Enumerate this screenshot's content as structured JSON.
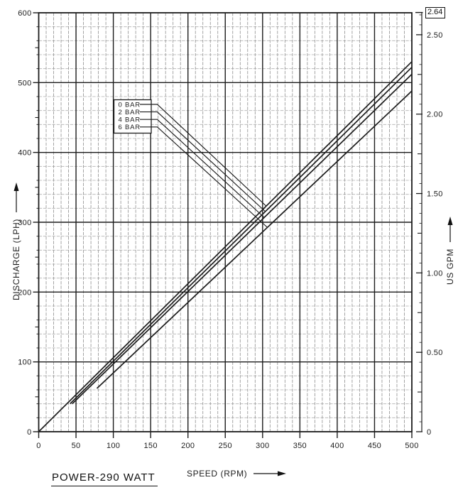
{
  "chart_data": {
    "type": "line",
    "xlabel": "SPEED (RPM)",
    "ylabel_left": "DISCHARGE (LPH)",
    "ylabel_right": "US GPM",
    "footer": "POWER-290 WATT",
    "x_range": [
      0,
      500
    ],
    "x_major": 50,
    "x_minor": 10,
    "x_ticks": [
      0,
      50,
      100,
      150,
      200,
      250,
      300,
      350,
      400,
      450,
      500
    ],
    "y_range": [
      0,
      600
    ],
    "y_major": 100,
    "y_minor": 20,
    "y_ticks": [
      0,
      100,
      200,
      300,
      400,
      500,
      600
    ],
    "grid": "on",
    "right_axis": {
      "range": [
        0,
        2.64
      ],
      "ticks": [
        {
          "v": 0,
          "label": "0"
        },
        {
          "v": 0.5,
          "label": "0.50"
        },
        {
          "v": 1,
          "label": "1.00"
        },
        {
          "v": 1.5,
          "label": "1.50"
        },
        {
          "v": 2,
          "label": "2.00"
        },
        {
          "v": 2.5,
          "label": "2.50"
        }
      ],
      "max_label": "2.64",
      "max_value": 2.64
    },
    "series": [
      {
        "name": "0 BAR",
        "points": [
          [
            0,
            0
          ],
          [
            500,
            530
          ]
        ]
      },
      {
        "name": "2 BAR",
        "points": [
          [
            42,
            40
          ],
          [
            500,
            522
          ]
        ]
      },
      {
        "name": "4 BAR",
        "points": [
          [
            45,
            40
          ],
          [
            500,
            512
          ]
        ]
      },
      {
        "name": "6 BAR",
        "points": [
          [
            78,
            62
          ],
          [
            500,
            488
          ]
        ]
      }
    ],
    "legend": {
      "position": "upper-left-inside",
      "labels": [
        "0 BAR",
        "2 BAR",
        "4 BAR",
        "6 BAR"
      ],
      "callout_targets": [
        [
          305,
          323
        ],
        [
          304,
          315
        ],
        [
          302,
          307
        ],
        [
          306,
          293
        ]
      ]
    },
    "colors": {
      "ink": "#1c1c1c",
      "grid_minor_v": "#8f8f8f",
      "grid_minor_h": "#b2b2b2",
      "background": "#ffffff"
    }
  }
}
